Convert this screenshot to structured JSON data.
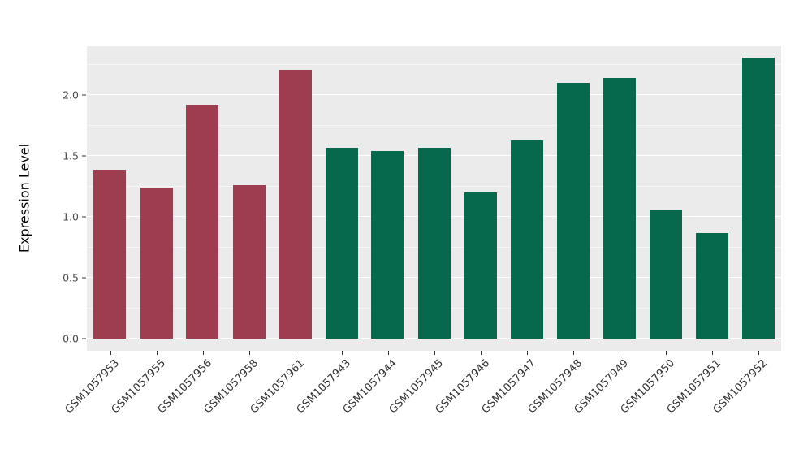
{
  "chart_data": {
    "type": "bar",
    "title": "",
    "xlabel": "",
    "ylabel": "Expression Level",
    "categories": [
      "GSM1057953",
      "GSM1057955",
      "GSM1057956",
      "GSM1057958",
      "GSM1057961",
      "GSM1057943",
      "GSM1057944",
      "GSM1057945",
      "GSM1057946",
      "GSM1057947",
      "GSM1057948",
      "GSM1057949",
      "GSM1057950",
      "GSM1057951",
      "GSM1057952"
    ],
    "values": [
      1.39,
      1.24,
      1.92,
      1.26,
      2.21,
      1.57,
      1.54,
      1.57,
      1.2,
      1.63,
      2.1,
      2.14,
      1.06,
      0.87,
      2.31
    ],
    "bar_colors": [
      "#9E3D4F",
      "#9E3D4F",
      "#9E3D4F",
      "#9E3D4F",
      "#9E3D4F",
      "#06694E",
      "#06694E",
      "#06694E",
      "#06694E",
      "#06694E",
      "#06694E",
      "#06694E",
      "#06694E",
      "#06694E",
      "#06694E"
    ],
    "group_colors": {
      "red_group": "#9E3D4F",
      "green_group": "#06694E"
    },
    "ylim": [
      -0.1,
      2.4
    ],
    "ytick_values": [
      0.0,
      0.5,
      1.0,
      1.5,
      2.0
    ],
    "ytick_labels": [
      "0.0",
      "0.5",
      "1.0",
      "1.5",
      "2.0"
    ],
    "grid": true,
    "legend": "none",
    "plot_background": "#EBEBEB",
    "grid_color": "#FFFFFF"
  }
}
